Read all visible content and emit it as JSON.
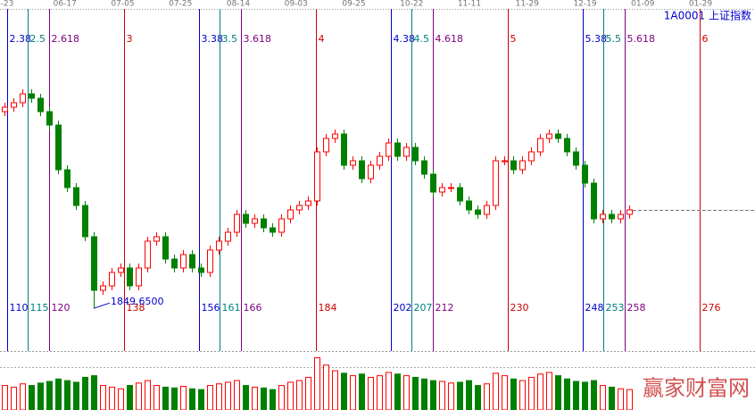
{
  "chart_data": {
    "type": "candlestick",
    "title": "1A0001 上证指数",
    "watermark": "赢家财富网",
    "date_labels": [
      "-23",
      "06-17",
      "07-05",
      "07-25",
      "08-14",
      "09-03",
      "09-25",
      "10-22",
      "11-11",
      "11-29",
      "12-19",
      "01-09",
      "01-29"
    ],
    "ylim": [
      1760,
      2520
    ],
    "up_color": "#ff0000",
    "down_color": "#008000",
    "open": [
      2290,
      2300,
      2310,
      2330,
      2320,
      2290,
      2260,
      2160,
      2120,
      2080,
      2010,
      1890,
      1900,
      1930,
      1940,
      1900,
      1940,
      2000,
      2010,
      1960,
      1940,
      1970,
      1940,
      1930,
      1980,
      2000,
      2020,
      2060,
      2040,
      2050,
      2030,
      2020,
      2050,
      2070,
      2080,
      2090,
      2200,
      2230,
      2240,
      2170,
      2180,
      2140,
      2170,
      2190,
      2220,
      2190,
      2210,
      2180,
      2150,
      2110,
      2120,
      2120,
      2090,
      2070,
      2060,
      2080,
      2180,
      2180,
      2160,
      2180,
      2200,
      2230,
      2240,
      2230,
      2200,
      2170,
      2130,
      2050,
      2060,
      2050,
      2060
    ],
    "high": [
      2310,
      2320,
      2340,
      2340,
      2330,
      2300,
      2270,
      2170,
      2130,
      2090,
      2020,
      1910,
      1940,
      1950,
      1950,
      1950,
      2010,
      2020,
      2020,
      1970,
      1980,
      1980,
      1950,
      1990,
      2010,
      2030,
      2070,
      2070,
      2060,
      2060,
      2040,
      2060,
      2080,
      2090,
      2100,
      2210,
      2240,
      2250,
      2250,
      2190,
      2190,
      2180,
      2200,
      2230,
      2230,
      2220,
      2220,
      2190,
      2160,
      2130,
      2130,
      2130,
      2100,
      2080,
      2090,
      2190,
      2190,
      2190,
      2190,
      2210,
      2240,
      2250,
      2250,
      2240,
      2210,
      2180,
      2140,
      2070,
      2070,
      2070,
      2080
    ],
    "low": [
      2280,
      2290,
      2300,
      2310,
      2280,
      2250,
      2150,
      2110,
      2070,
      2000,
      1849.65,
      1880,
      1890,
      1920,
      1890,
      1890,
      1930,
      1990,
      1950,
      1930,
      1930,
      1930,
      1920,
      1920,
      1970,
      1990,
      2010,
      2030,
      2030,
      2020,
      2010,
      2010,
      2040,
      2060,
      2070,
      2080,
      2190,
      2220,
      2160,
      2160,
      2130,
      2130,
      2160,
      2180,
      2180,
      2180,
      2170,
      2140,
      2100,
      2100,
      2110,
      2080,
      2060,
      2050,
      2050,
      2070,
      2170,
      2150,
      2150,
      2170,
      2190,
      2220,
      2220,
      2190,
      2160,
      2120,
      2040,
      2040,
      2040,
      2040,
      2050
    ],
    "close": [
      2300,
      2310,
      2330,
      2320,
      2290,
      2260,
      2160,
      2120,
      2080,
      2010,
      1890,
      1900,
      1930,
      1940,
      1900,
      1940,
      2000,
      2010,
      1960,
      1940,
      1970,
      1940,
      1930,
      1980,
      2000,
      2020,
      2060,
      2040,
      2050,
      2030,
      2020,
      2050,
      2070,
      2080,
      2090,
      2200,
      2230,
      2240,
      2170,
      2180,
      2140,
      2170,
      2190,
      2220,
      2190,
      2210,
      2180,
      2150,
      2110,
      2120,
      2120,
      2090,
      2070,
      2060,
      2080,
      2180,
      2180,
      2160,
      2180,
      2200,
      2230,
      2240,
      2230,
      2200,
      2170,
      2130,
      2050,
      2060,
      2050,
      2060,
      2070
    ],
    "volumes": [
      30,
      28,
      32,
      30,
      33,
      35,
      38,
      36,
      34,
      40,
      42,
      30,
      28,
      26,
      30,
      33,
      36,
      30,
      28,
      27,
      29,
      26,
      25,
      30,
      32,
      34,
      36,
      30,
      28,
      27,
      25,
      30,
      34,
      36,
      40,
      64,
      55,
      48,
      45,
      42,
      44,
      40,
      42,
      46,
      44,
      42,
      40,
      38,
      36,
      35,
      33,
      34,
      36,
      30,
      32,
      45,
      42,
      38,
      36,
      40,
      44,
      46,
      42,
      38,
      35,
      34,
      36,
      30,
      28,
      26,
      25
    ],
    "volume_ylim": [
      0,
      70
    ],
    "low_annotation": {
      "value": 1849.65,
      "label": "1849.6500"
    },
    "cycle_lines": [
      {
        "ratio": 2.38,
        "day": 110,
        "color": "#0000cc"
      },
      {
        "ratio": 2.5,
        "day": 115,
        "color": "#008080"
      },
      {
        "ratio": 2.618,
        "day": 120,
        "color": "#800080"
      },
      {
        "ratio": 3,
        "day": 138,
        "color": "#cc0000"
      },
      {
        "ratio": 3.38,
        "day": 156,
        "color": "#0000cc"
      },
      {
        "ratio": 3.5,
        "day": 161,
        "color": "#008080"
      },
      {
        "ratio": 3.618,
        "day": 166,
        "color": "#800080"
      },
      {
        "ratio": 4,
        "day": 184,
        "color": "#cc0000"
      },
      {
        "ratio": 4.38,
        "day": 202,
        "color": "#0000cc"
      },
      {
        "ratio": 4.5,
        "day": 207,
        "color": "#008080"
      },
      {
        "ratio": 4.618,
        "day": 212,
        "color": "#800080"
      },
      {
        "ratio": 5,
        "day": 230,
        "color": "#cc0000"
      },
      {
        "ratio": 5.38,
        "day": 248,
        "color": "#0000cc"
      },
      {
        "ratio": 5.5,
        "day": 253,
        "color": "#008080"
      },
      {
        "ratio": 5.618,
        "day": 258,
        "color": "#800080"
      },
      {
        "ratio": 6,
        "day": 276,
        "color": "#cc0000"
      }
    ]
  }
}
